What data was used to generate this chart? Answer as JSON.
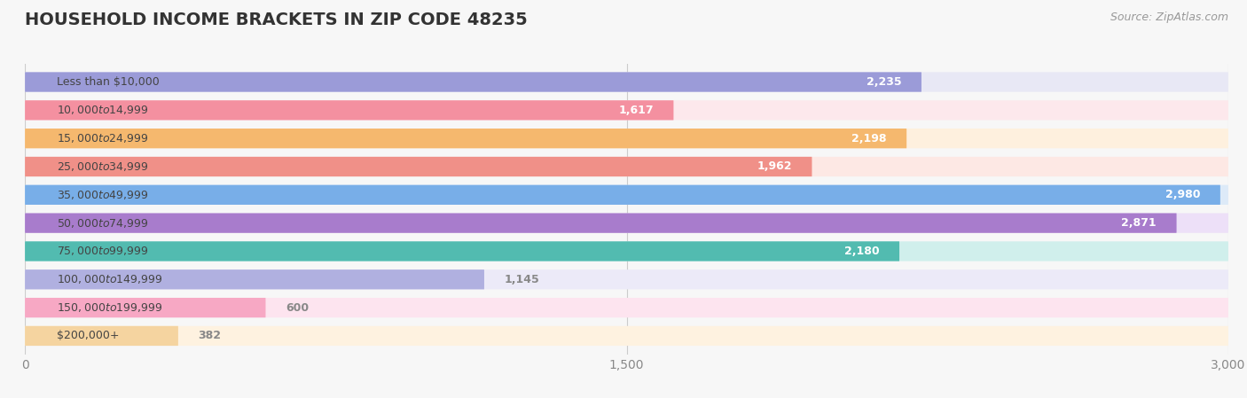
{
  "title": "HOUSEHOLD INCOME BRACKETS IN ZIP CODE 48235",
  "source": "Source: ZipAtlas.com",
  "categories": [
    "Less than $10,000",
    "$10,000 to $14,999",
    "$15,000 to $24,999",
    "$25,000 to $34,999",
    "$35,000 to $49,999",
    "$50,000 to $74,999",
    "$75,000 to $99,999",
    "$100,000 to $149,999",
    "$150,000 to $199,999",
    "$200,000+"
  ],
  "values": [
    2235,
    1617,
    2198,
    1962,
    2980,
    2871,
    2180,
    1145,
    600,
    382
  ],
  "bar_colors": [
    "#9b9bd8",
    "#f490a0",
    "#f5b86e",
    "#f09088",
    "#78aee8",
    "#a87ccc",
    "#52bbb0",
    "#b0b0e0",
    "#f7a8c4",
    "#f5d4a0"
  ],
  "bar_bg_colors": [
    "#e8e8f5",
    "#fde8ec",
    "#fef0de",
    "#fde8e4",
    "#ddeaf8",
    "#ede0f8",
    "#d0efec",
    "#eceaf8",
    "#fde4ef",
    "#fef2e0"
  ],
  "xlim_max": 3000,
  "xticks": [
    0,
    1500,
    3000
  ],
  "label_color_inside": "#ffffff",
  "label_color_outside": "#888888",
  "title_fontsize": 14,
  "tick_fontsize": 10,
  "bar_label_fontsize": 9,
  "category_fontsize": 9,
  "source_fontsize": 9,
  "background_color": "#f7f7f7",
  "value_threshold_inside": 1400
}
